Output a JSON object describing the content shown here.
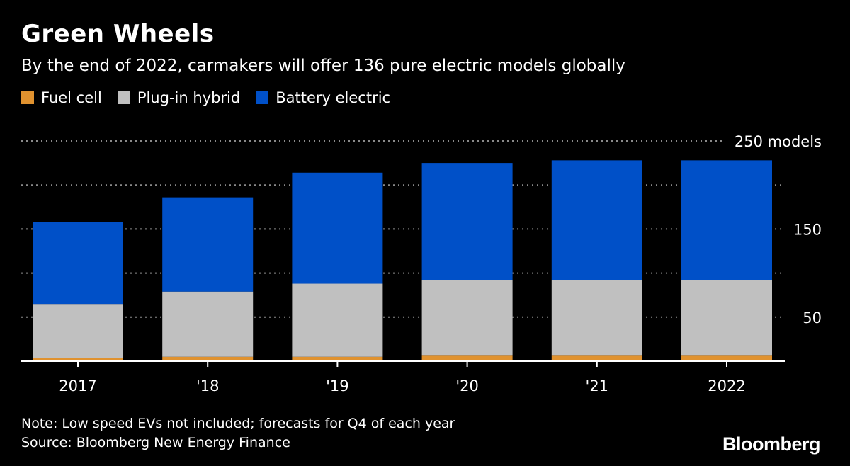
{
  "header": {
    "title": "Green Wheels",
    "subtitle": "By the end of 2022, carmakers will offer 136 pure electric models globally"
  },
  "legend": [
    {
      "label": "Fuel cell",
      "color": "#e0922f"
    },
    {
      "label": "Plug-in hybrid",
      "color": "#c0c0c0"
    },
    {
      "label": "Battery electric",
      "color": "#0050c8"
    }
  ],
  "footer": {
    "note": "Note: Low speed EVs not included; forecasts for Q4 of each year",
    "source": "Source: Bloomberg New Energy Finance",
    "brand": "Bloomberg"
  },
  "chart_data": {
    "type": "bar",
    "stacked": true,
    "categories": [
      "2017",
      "'18",
      "'19",
      "'20",
      "'21",
      "2022"
    ],
    "series": [
      {
        "name": "Fuel cell",
        "color": "#e0922f",
        "values": [
          4,
          5,
          5,
          7,
          7,
          7
        ]
      },
      {
        "name": "Plug-in hybrid",
        "color": "#c0c0c0",
        "values": [
          61,
          74,
          83,
          85,
          85,
          85
        ]
      },
      {
        "name": "Battery electric",
        "color": "#0050c8",
        "values": [
          93,
          107,
          126,
          133,
          136,
          136
        ]
      }
    ],
    "ylim": [
      0,
      250
    ],
    "yticks": [
      0,
      50,
      100,
      150,
      200,
      250
    ],
    "ytick_labels": {
      "50": "50",
      "150": "150",
      "250": "250 models"
    },
    "grid": true
  }
}
